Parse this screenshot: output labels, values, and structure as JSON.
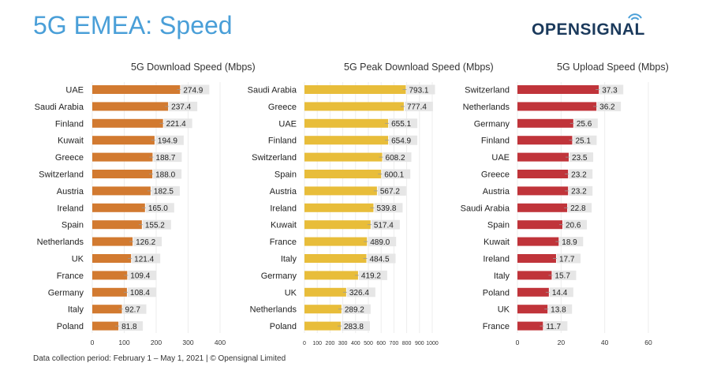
{
  "header": {
    "title": "5G EMEA: Speed",
    "logo_text": "OPENSIGNAL"
  },
  "footnote": "Data collection period: February 1 – May 1, 2021  |  © Opensignal Limited",
  "colors": {
    "title": "#4a9fd8",
    "download": "#d27a30",
    "peak": "#e8bd3a",
    "upload": "#c0343a",
    "label_bg": "#e6e6e6",
    "logo": "#1b3a5c"
  },
  "chart_data": [
    {
      "type": "bar",
      "orientation": "horizontal",
      "title": "5G Download Speed (Mbps)",
      "categories": [
        "UAE",
        "Saudi Arabia",
        "Finland",
        "Kuwait",
        "Greece",
        "Switzerland",
        "Austria",
        "Ireland",
        "Spain",
        "Netherlands",
        "UK",
        "France",
        "Germany",
        "Italy",
        "Poland"
      ],
      "values": [
        274.9,
        237.4,
        221.4,
        194.9,
        188.7,
        188.0,
        182.5,
        165.0,
        155.2,
        126.2,
        121.4,
        109.4,
        108.4,
        92.7,
        81.8
      ],
      "labels": [
        "274.9",
        "237.4",
        "221.4",
        "194.9",
        "188.7",
        "188.0",
        "182.5",
        "165.0",
        "155.2",
        "126.2",
        "121.4",
        "109.4",
        "108.4",
        "92.7",
        "81.8"
      ],
      "xlim": [
        0,
        400
      ],
      "ticks": [
        0,
        100,
        200,
        300,
        400
      ],
      "color_key": "download"
    },
    {
      "type": "bar",
      "orientation": "horizontal",
      "title": "5G Peak Download Speed (Mbps)",
      "categories": [
        "Saudi Arabia",
        "Greece",
        "UAE",
        "Finland",
        "Switzerland",
        "Spain",
        "Austria",
        "Ireland",
        "Kuwait",
        "France",
        "Italy",
        "Germany",
        "UK",
        "Netherlands",
        "Poland"
      ],
      "values": [
        793.1,
        777.4,
        655.1,
        654.9,
        608.2,
        600.1,
        567.2,
        539.8,
        517.4,
        489.0,
        484.5,
        419.2,
        326.4,
        289.2,
        283.8
      ],
      "labels": [
        "793.1",
        "777.4",
        "655.1",
        "654.9",
        "608.2",
        "600.1",
        "567.2",
        "539.8",
        "517.4",
        "489.0",
        "484.5",
        "419.2",
        "326.4",
        "289.2",
        "283.8"
      ],
      "xlim": [
        0,
        1000
      ],
      "ticks": [
        0,
        100,
        200,
        300,
        400,
        500,
        600,
        700,
        800,
        900,
        1000
      ],
      "color_key": "peak"
    },
    {
      "type": "bar",
      "orientation": "horizontal",
      "title": "5G Upload Speed (Mbps)",
      "categories": [
        "Switzerland",
        "Netherlands",
        "Germany",
        "Finland",
        "UAE",
        "Greece",
        "Austria",
        "Saudi Arabia",
        "Spain",
        "Kuwait",
        "Ireland",
        "Italy",
        "Poland",
        "UK",
        "France"
      ],
      "values": [
        37.3,
        36.2,
        25.6,
        25.1,
        23.5,
        23.2,
        23.2,
        22.8,
        20.6,
        18.9,
        17.7,
        15.7,
        14.4,
        13.8,
        11.7
      ],
      "labels": [
        "37.3",
        "36.2",
        "25.6",
        "25.1",
        "23.5",
        "23.2",
        "23.2",
        "22.8",
        "20.6",
        "18.9",
        "17.7",
        "15.7",
        "14.4",
        "13.8",
        "11.7"
      ],
      "xlim": [
        0,
        60
      ],
      "ticks": [
        0,
        20,
        40,
        60
      ],
      "color_key": "upload"
    }
  ]
}
